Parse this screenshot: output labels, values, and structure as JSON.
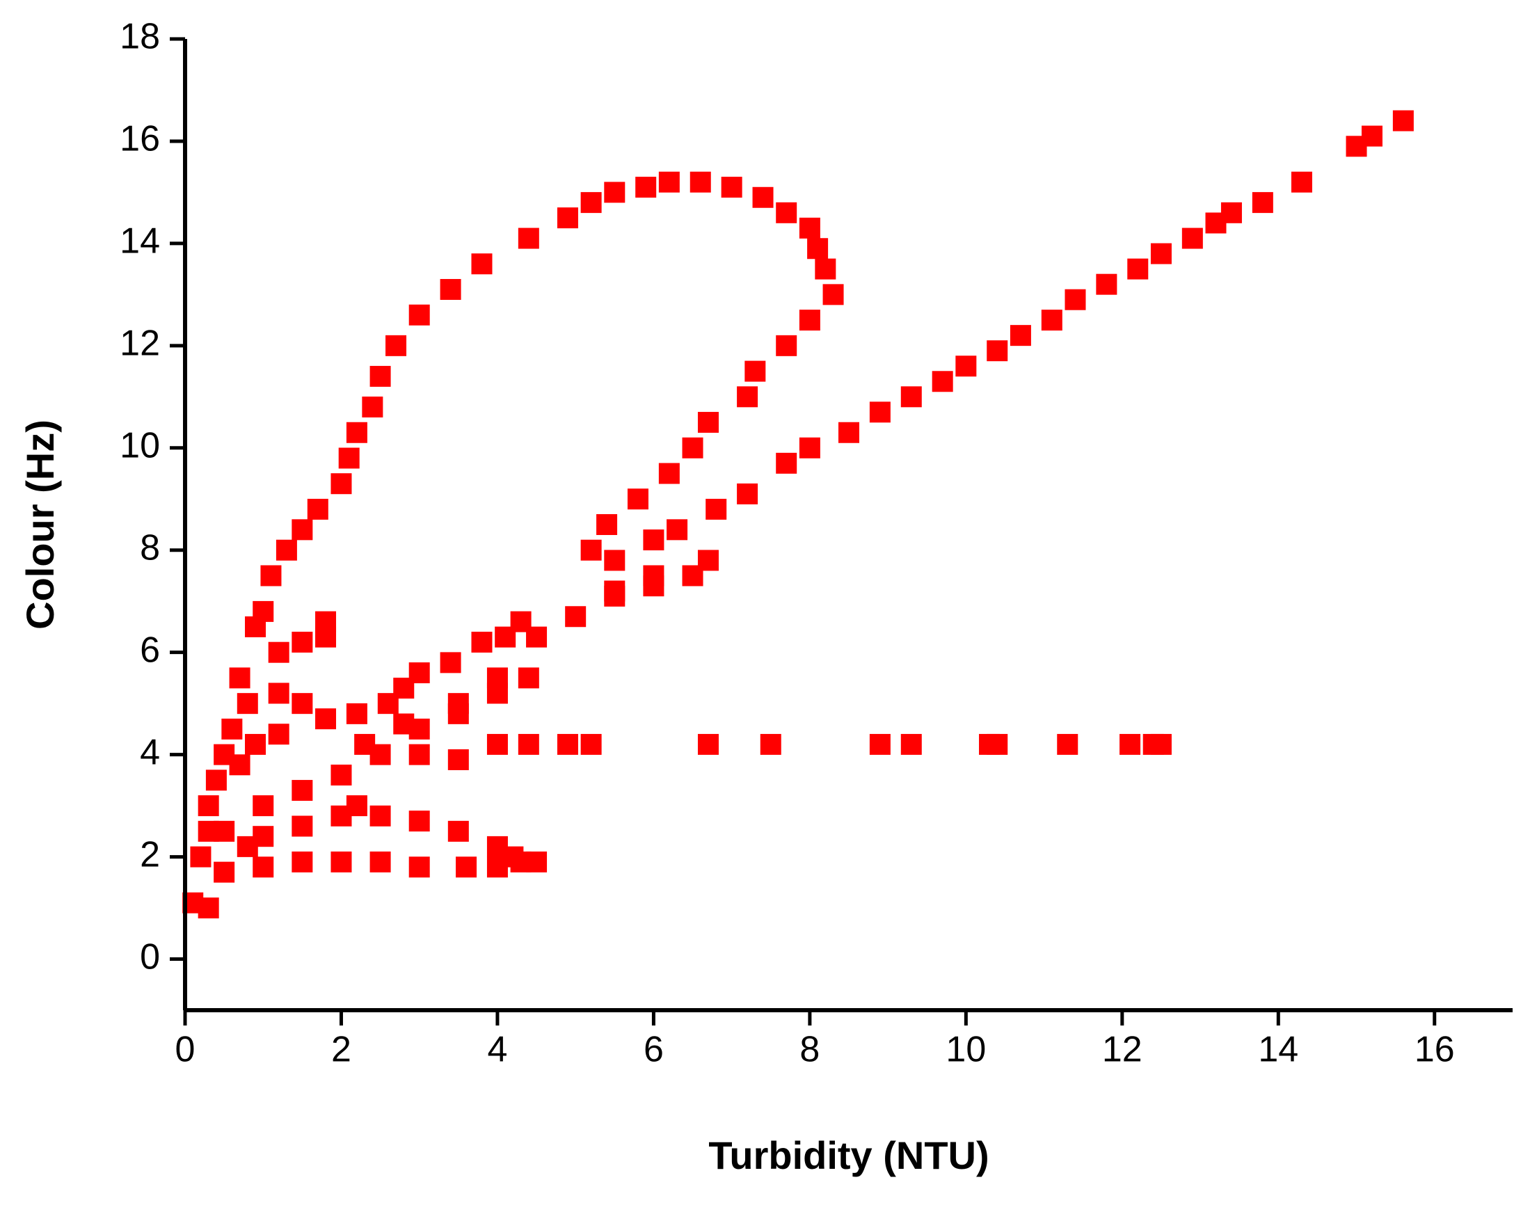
{
  "chart_data": {
    "type": "scatter",
    "x_label": "Turbidity (NTU)",
    "y_label": "Colour (Hz)",
    "xlim": [
      0,
      17
    ],
    "ylim": [
      -1,
      18
    ],
    "xticks": [
      0,
      2,
      4,
      6,
      8,
      10,
      12,
      14,
      16
    ],
    "yticks": [
      0,
      2,
      4,
      6,
      8,
      10,
      12,
      14,
      16,
      18
    ],
    "color": "#ff0000",
    "x": [
      0.3,
      0.5,
      0.7,
      0.9,
      1.1,
      1.3,
      1.5,
      1.7,
      2.0,
      2.1,
      2.2,
      2.4,
      2.5,
      2.7,
      3.0,
      3.4,
      3.8,
      4.4,
      4.9,
      5.2,
      5.5,
      5.9,
      6.2,
      6.6,
      7.0,
      7.4,
      7.7,
      8.0,
      8.1,
      8.2,
      8.3,
      8.0,
      7.7,
      7.3,
      7.2,
      6.7,
      6.5,
      6.2,
      5.8,
      5.4,
      5.2,
      5.5,
      6.0,
      6.3,
      6.7,
      6.5,
      6.0,
      5.5,
      1.0,
      1.5,
      2.0,
      2.5,
      3.0,
      3.5,
      4.0,
      4.5,
      5.0,
      5.5,
      6.0,
      6.8,
      7.2,
      7.7,
      8.0,
      8.5,
      8.9,
      9.3,
      9.7,
      10.0,
      10.4,
      10.7,
      11.1,
      11.4,
      11.8,
      12.2,
      12.5,
      12.9,
      13.2,
      13.4,
      13.8,
      14.3,
      15.0,
      15.2,
      15.6,
      3.0,
      3.5,
      4.0,
      4.4,
      4.9,
      5.2,
      6.7,
      7.5,
      8.9,
      9.3,
      10.3,
      10.4,
      11.3,
      12.1,
      12.4,
      12.5,
      0.5,
      1.0,
      1.5,
      2.0,
      2.5,
      3.0,
      3.6,
      4.0,
      4.3,
      4.5,
      2.5,
      3.0,
      3.5,
      4.0,
      4.2,
      0.1,
      0.3,
      0.2,
      0.3,
      0.4,
      0.6,
      0.8,
      1.0,
      1.2,
      1.5,
      1.8,
      1.8,
      1.2,
      1.5,
      1.8,
      2.2,
      2.6,
      2.8,
      3.0,
      3.4,
      3.8,
      4.1,
      4.3,
      4.4,
      4.0,
      3.5,
      2.2,
      2.0,
      1.5,
      1.0,
      0.8,
      0.5,
      0.7,
      0.9,
      1.2,
      2.3,
      2.8
    ],
    "values": [
      2.5,
      4,
      5.5,
      6.5,
      7.5,
      8,
      8.4,
      8.8,
      9.3,
      9.8,
      10.3,
      10.8,
      11.4,
      12,
      12.6,
      13.1,
      13.6,
      14.1,
      14.5,
      14.8,
      15,
      15.1,
      15.2,
      15.2,
      15.1,
      14.9,
      14.6,
      14.3,
      13.9,
      13.5,
      13,
      12.5,
      12,
      11.5,
      11,
      10.5,
      10,
      9.5,
      9,
      8.5,
      8,
      7.8,
      8.2,
      8.4,
      7.8,
      7.5,
      7.3,
      7.1,
      3.0,
      3.3,
      3.6,
      4,
      4.5,
      5,
      5.5,
      6.3,
      6.7,
      7.2,
      7.5,
      8.8,
      9.1,
      9.7,
      10,
      10.3,
      10.7,
      11,
      11.3,
      11.6,
      11.9,
      12.2,
      12.5,
      12.9,
      13.2,
      13.5,
      13.8,
      14.1,
      14.4,
      14.6,
      14.8,
      15.2,
      15.9,
      16.1,
      16.4,
      4.0,
      3.9,
      4.2,
      4.2,
      4.2,
      4.2,
      4.2,
      4.2,
      4.2,
      4.2,
      4.2,
      4.2,
      4.2,
      4.2,
      4.2,
      4.2,
      1.7,
      1.8,
      1.9,
      1.9,
      1.9,
      1.8,
      1.8,
      1.8,
      1.9,
      1.9,
      2.8,
      2.7,
      2.5,
      2.2,
      2.0,
      1.1,
      1.0,
      2,
      3,
      3.5,
      4.5,
      5,
      6.8,
      6,
      6.2,
      6.6,
      6.3,
      5.2,
      5,
      4.7,
      4.8,
      5,
      5.3,
      5.6,
      5.8,
      6.2,
      6.3,
      6.6,
      5.5,
      5.2,
      4.8,
      3.0,
      2.8,
      2.6,
      2.4,
      2.2,
      2.5,
      3.8,
      4.2,
      4.4,
      4.2,
      4.6
    ]
  }
}
